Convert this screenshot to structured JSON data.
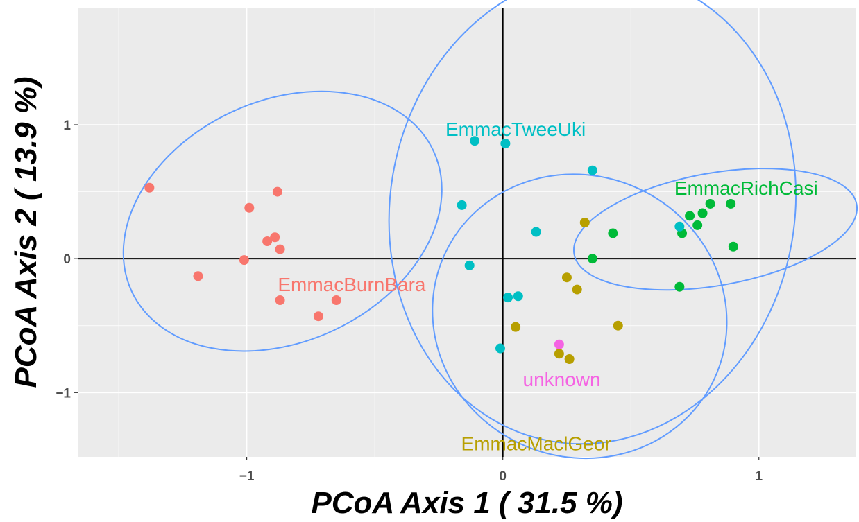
{
  "chart_data": {
    "type": "scatter",
    "xlabel": "PCoA Axis 1 ( 31.5 %)",
    "ylabel": "PCoA Axis 2 ( 13.9 %)",
    "xlim": [
      -1.66,
      1.38
    ],
    "ylim": [
      -1.48,
      1.87
    ],
    "x_ticks": [
      -1,
      0,
      1
    ],
    "x_tick_labels": [
      "−1",
      "0",
      "1"
    ],
    "y_ticks": [
      -1,
      0,
      1
    ],
    "y_tick_labels": [
      "−1",
      "0",
      "1"
    ],
    "grid": true,
    "background": "#ebebeb",
    "ellipse_color": "#619cff",
    "series": [
      {
        "name": "EmmacBurnBara",
        "color": "#f8766d",
        "label_pos": [
          -0.59,
          -0.19
        ],
        "points": [
          [
            -1.38,
            0.53
          ],
          [
            -1.19,
            -0.13
          ],
          [
            -0.99,
            0.38
          ],
          [
            -1.01,
            -0.01
          ],
          [
            -0.92,
            0.13
          ],
          [
            -0.89,
            0.16
          ],
          [
            -0.88,
            0.5
          ],
          [
            -0.87,
            0.07
          ],
          [
            -0.87,
            -0.31
          ],
          [
            -0.72,
            -0.43
          ],
          [
            -0.65,
            -0.31
          ]
        ],
        "ellipse": {
          "cx": -0.86,
          "cy": 0.28,
          "rx": 0.65,
          "ry": 0.9,
          "angle": -25
        }
      },
      {
        "name": "EmmacMaclGeor",
        "color": "#b79f00",
        "label_pos": [
          0.13,
          -1.38
        ],
        "points": [
          [
            0.05,
            -0.51
          ],
          [
            0.25,
            -0.14
          ],
          [
            0.22,
            -0.71
          ],
          [
            0.26,
            -0.75
          ],
          [
            0.29,
            -0.23
          ],
          [
            0.32,
            0.27
          ],
          [
            0.45,
            -0.5
          ]
        ],
        "ellipse": {
          "cx": 0.3,
          "cy": -0.43,
          "rx": 0.58,
          "ry": 1.05,
          "angle": 25
        }
      },
      {
        "name": "EmmacRichCasi",
        "color": "#00ba38",
        "label_pos": [
          0.95,
          0.53
        ],
        "points": [
          [
            0.35,
            0.0
          ],
          [
            0.43,
            0.19
          ],
          [
            0.69,
            -0.21
          ],
          [
            0.7,
            0.19
          ],
          [
            0.73,
            0.32
          ],
          [
            0.76,
            0.25
          ],
          [
            0.78,
            0.34
          ],
          [
            0.81,
            0.41
          ],
          [
            0.89,
            0.41
          ],
          [
            0.9,
            0.09
          ]
        ],
        "ellipse": {
          "cx": 0.83,
          "cy": 0.22,
          "rx": 0.56,
          "ry": 0.42,
          "angle": -10
        }
      },
      {
        "name": "EmmacTweeUki",
        "color": "#00bfc4",
        "label_pos": [
          0.05,
          0.97
        ],
        "points": [
          [
            -0.16,
            0.4
          ],
          [
            -0.13,
            -0.05
          ],
          [
            -0.11,
            0.88
          ],
          [
            -0.01,
            -0.67
          ],
          [
            0.01,
            0.86
          ],
          [
            0.02,
            -0.29
          ],
          [
            0.06,
            -0.28
          ],
          [
            0.13,
            0.2
          ],
          [
            0.35,
            0.66
          ],
          [
            0.69,
            0.24
          ]
        ],
        "ellipse": {
          "cx": 0.35,
          "cy": 0.38,
          "rx": 0.79,
          "ry": 1.77,
          "angle": 10
        }
      },
      {
        "name": "unknown",
        "color": "#f564e3",
        "label_pos": [
          0.23,
          -0.9
        ],
        "points": [
          [
            0.22,
            -0.64
          ]
        ]
      }
    ]
  }
}
